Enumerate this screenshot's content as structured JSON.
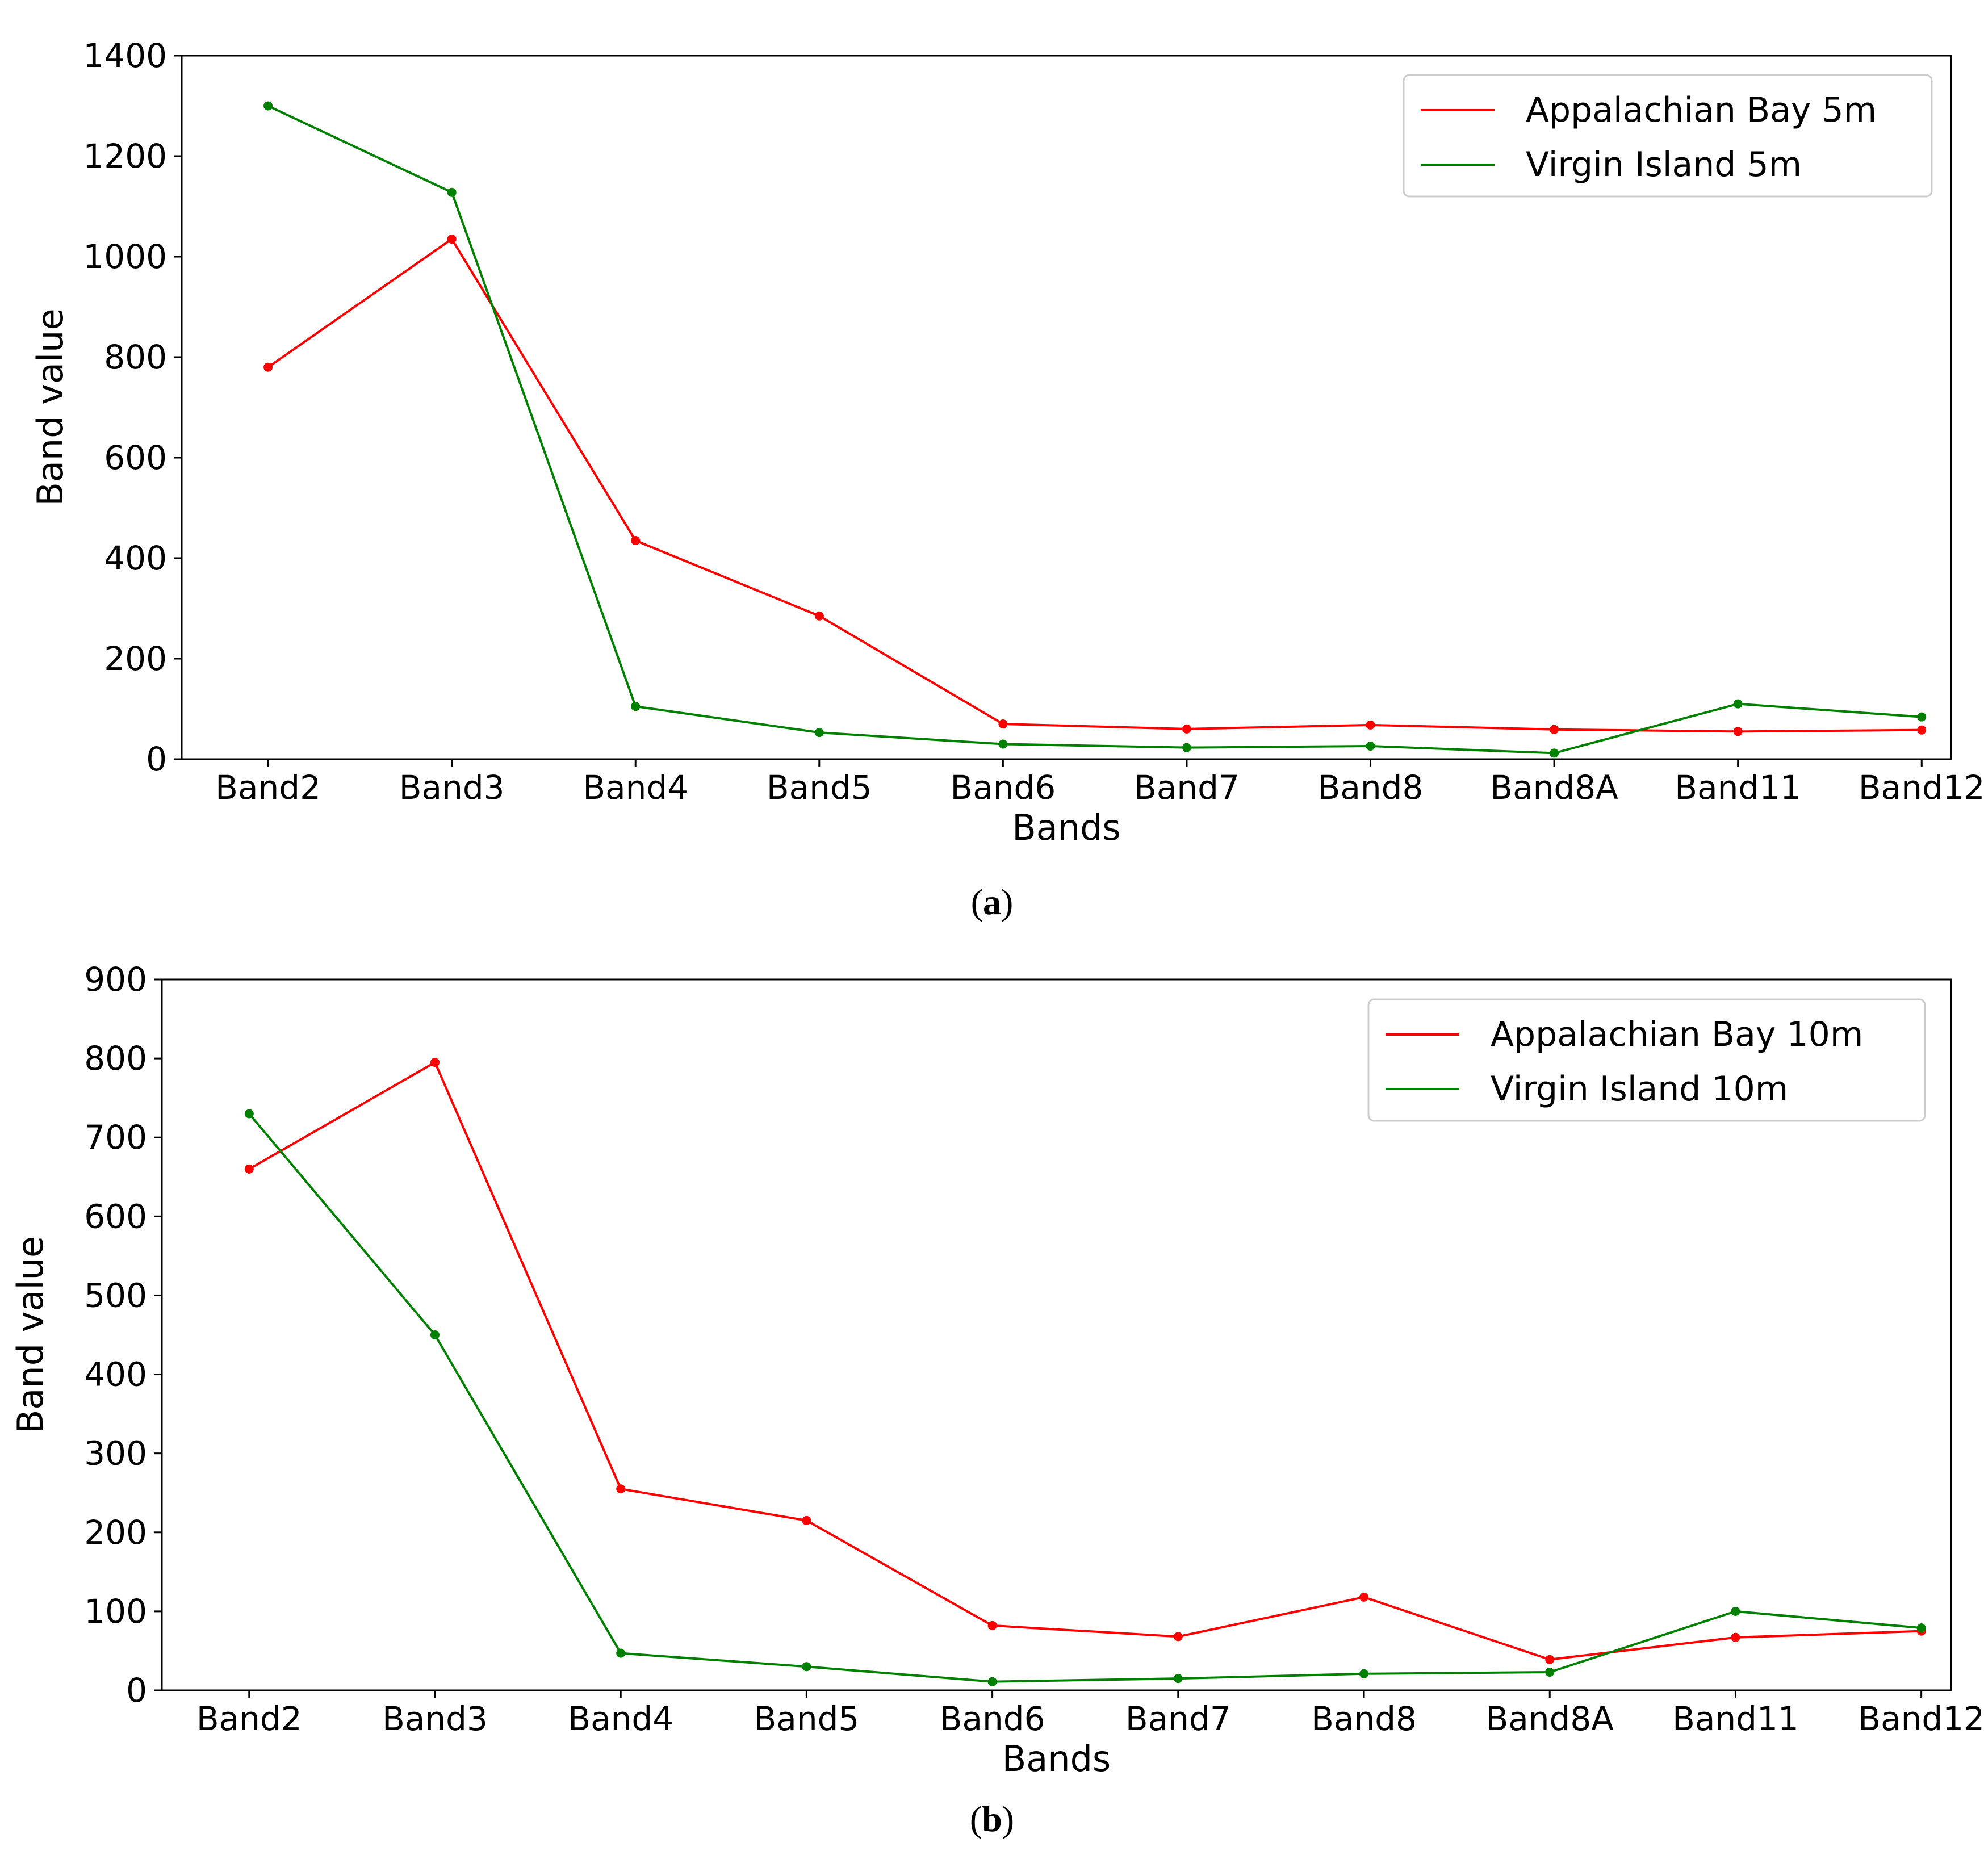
{
  "chart_data": [
    {
      "type": "line",
      "panel_label": "a",
      "title": "",
      "xlabel": "Bands",
      "ylabel": "Band value",
      "categories": [
        "Band2",
        "Band3",
        "Band4",
        "Band5",
        "Band6",
        "Band7",
        "Band8",
        "Band8A",
        "Band11",
        "Band12"
      ],
      "ylim": [
        0,
        1400
      ],
      "yticks": [
        0,
        200,
        400,
        600,
        800,
        1000,
        1200,
        1400
      ],
      "grid": false,
      "legend_position": "top-right",
      "series": [
        {
          "name": "Appalachian Bay 5m",
          "color": "#ff0000",
          "values": [
            780,
            1035,
            435,
            285,
            70,
            60,
            68,
            59,
            55,
            58
          ]
        },
        {
          "name": "Virgin Island 5m",
          "color": "#008000",
          "values": [
            1300,
            1128,
            105,
            53,
            30,
            23,
            26,
            12,
            110,
            84
          ]
        }
      ]
    },
    {
      "type": "line",
      "panel_label": "b",
      "title": "",
      "xlabel": "Bands",
      "ylabel": "Band value",
      "categories": [
        "Band2",
        "Band3",
        "Band4",
        "Band5",
        "Band6",
        "Band7",
        "Band8",
        "Band8A",
        "Band11",
        "Band12"
      ],
      "ylim": [
        0,
        900
      ],
      "yticks": [
        0,
        100,
        200,
        300,
        400,
        500,
        600,
        700,
        800,
        900
      ],
      "grid": false,
      "legend_position": "top-right",
      "series": [
        {
          "name": "Appalachian Bay 10m",
          "color": "#ff0000",
          "values": [
            660,
            795,
            255,
            215,
            82,
            68,
            118,
            39,
            67,
            75
          ]
        },
        {
          "name": "Virgin Island 10m",
          "color": "#008000",
          "values": [
            730,
            450,
            47,
            30,
            11,
            15,
            21,
            23,
            100,
            79
          ]
        }
      ]
    }
  ]
}
